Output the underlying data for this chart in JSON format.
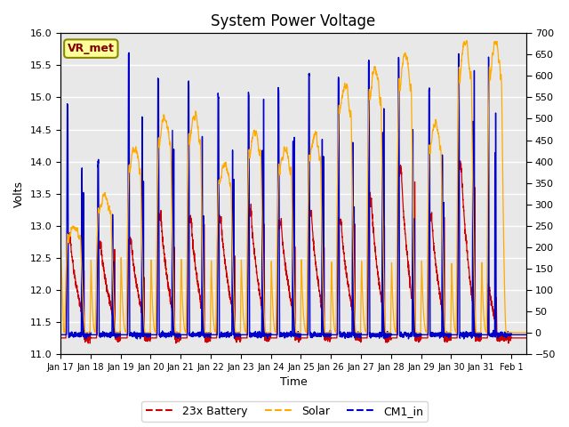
{
  "title": "System Power Voltage",
  "xlabel": "Time",
  "ylabel_left": "Volts",
  "left_ylim": [
    11.0,
    16.0
  ],
  "right_ylim": [
    -50,
    700
  ],
  "left_yticks": [
    11.0,
    11.5,
    12.0,
    12.5,
    13.0,
    13.5,
    14.0,
    14.5,
    15.0,
    15.5,
    16.0
  ],
  "right_yticks": [
    -50,
    0,
    50,
    100,
    150,
    200,
    250,
    300,
    350,
    400,
    450,
    500,
    550,
    600,
    650,
    700
  ],
  "battery_color": "#cc0000",
  "solar_color": "#ffaa00",
  "cm1_color": "#0000cc",
  "legend_entries": [
    "23x Battery",
    "Solar",
    "CM1_in"
  ],
  "annotation_text": "VR_met",
  "annotation_text_color": "#800000",
  "bg_color": "#e8e8e8",
  "title_fontsize": 12,
  "axis_fontsize": 9,
  "tick_fontsize": 8,
  "legend_fontsize": 9,
  "grid_color": "white",
  "grid_linewidth": 1.0,
  "n_days": 15.5,
  "pts_per_day": 240
}
